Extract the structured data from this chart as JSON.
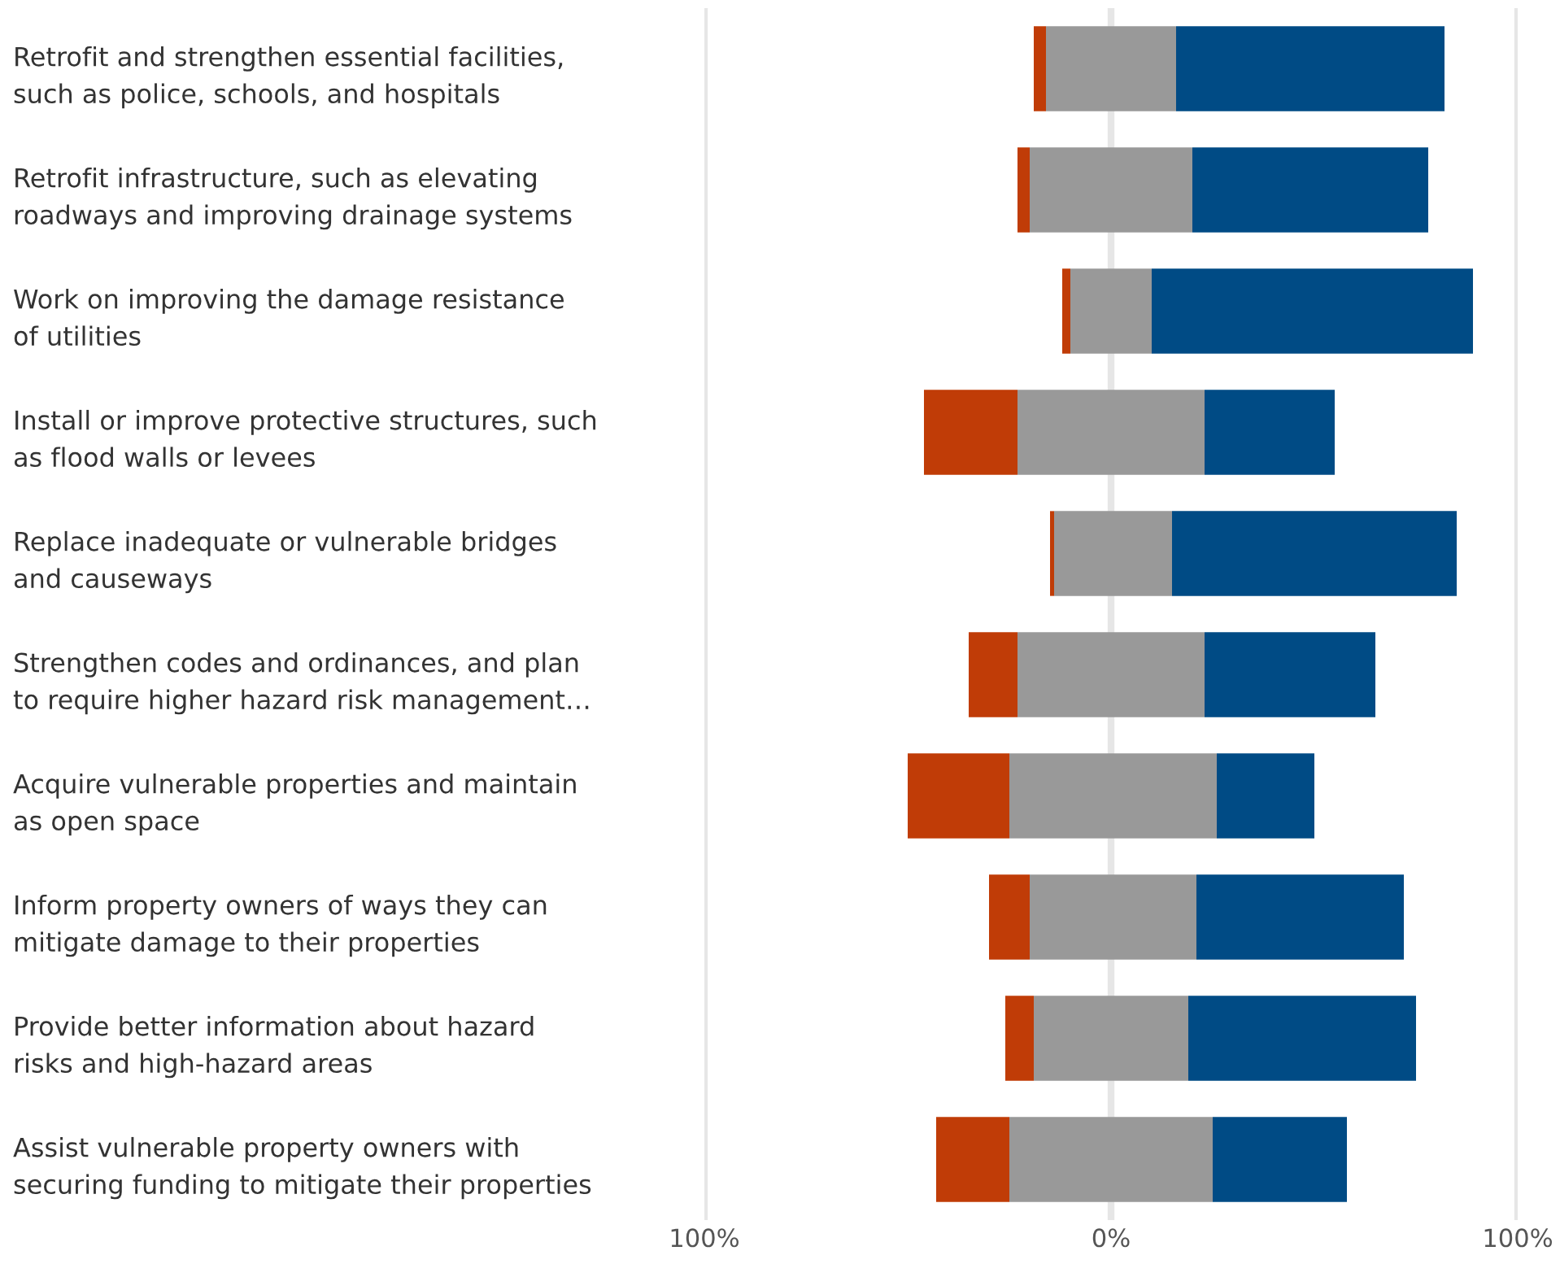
{
  "chart_data": {
    "type": "bar",
    "orientation": "horizontal",
    "stacked": true,
    "categories": [
      "Retrofit and strengthen essential facilities,\nsuch as police, schools, and hospitals",
      "Retrofit infrastructure, such as elevating\nroadways and improving drainage systems",
      "Work on improving the damage resistance\nof utilities",
      "Install or improve protective structures, such\nas flood walls or levees",
      "Replace inadequate or vulnerable bridges\nand causeways",
      "Strengthen codes and ordinances, and plan\nto require higher hazard risk management…",
      "Acquire vulnerable properties and maintain\nas open space",
      "Inform property owners of ways they can\nmitigate damage to their properties",
      "Provide better information about hazard\nrisks and high-hazard areas",
      "Assist vulnerable property owners with\nsecuring funding to mitigate their properties"
    ],
    "series": [
      {
        "color": "#999999",
        "values": [
          -16,
          -20,
          -10,
          -23,
          -14,
          -23,
          -25,
          -20,
          -19,
          -25
        ]
      },
      {
        "color": "#c03c07",
        "values": [
          -3,
          -3,
          -2,
          -23,
          -1,
          -12,
          -25,
          -10,
          -7,
          -18
        ]
      },
      {
        "color": "#999999",
        "values": [
          16,
          20,
          10,
          23,
          15,
          23,
          26,
          21,
          19,
          25
        ]
      },
      {
        "color": "#004b85",
        "values": [
          66,
          58,
          79,
          32,
          70,
          42,
          24,
          51,
          56,
          33
        ]
      }
    ],
    "xlim": [
      -100,
      100
    ],
    "xticks": [
      {
        "value": -100,
        "label": "100%"
      },
      {
        "value": 0,
        "label": "0%"
      },
      {
        "value": 100,
        "label": "100%"
      }
    ],
    "grid": "x"
  }
}
